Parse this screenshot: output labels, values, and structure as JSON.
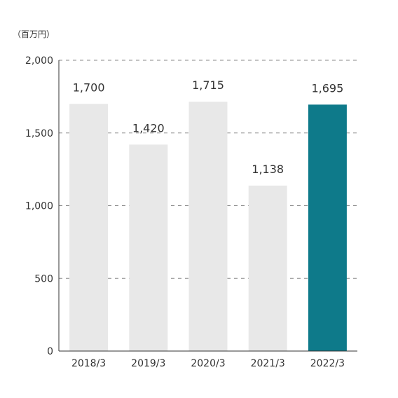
{
  "chart_data": {
    "type": "bar",
    "unit": "（百万円）",
    "categories": [
      "2018/3",
      "2019/3",
      "2020/3",
      "2021/3",
      "2022/3"
    ],
    "values": [
      1700,
      1420,
      1715,
      1138,
      1695
    ],
    "value_labels": [
      "1,700",
      "1,420",
      "1,715",
      "1,138",
      "1,695"
    ],
    "ylim": [
      0,
      2000
    ],
    "yticks": [
      0,
      500,
      1000,
      1500,
      2000
    ],
    "ytick_labels": [
      "0",
      "500",
      "1,000",
      "1,500",
      "2,000"
    ],
    "grid": true,
    "colors": {
      "default": "#e8e8e8",
      "highlight": "#0e7a8a",
      "highlight_index": 4
    }
  }
}
